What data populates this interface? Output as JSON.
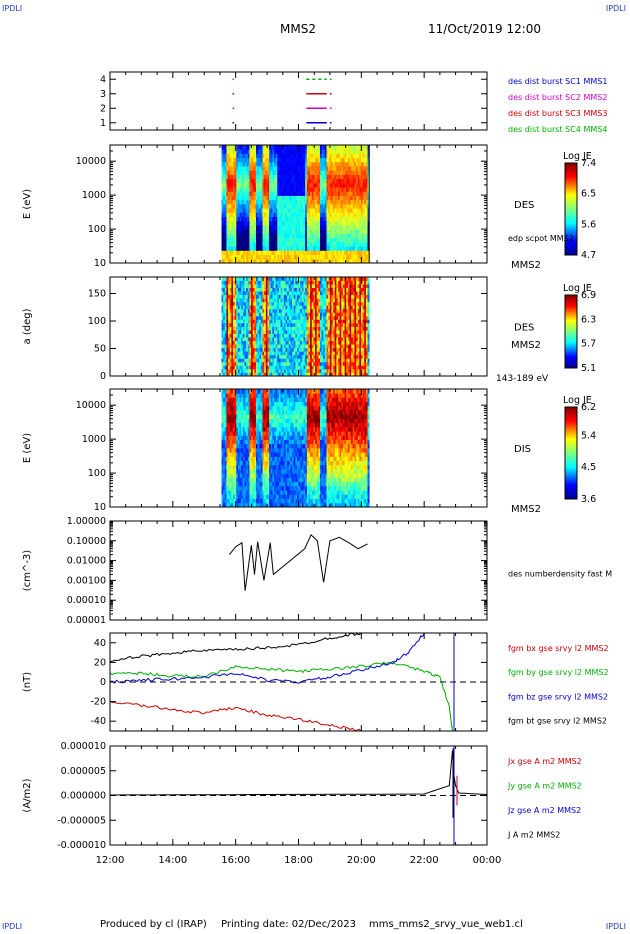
{
  "header": {
    "corner_label": "IPDLI",
    "spacecraft": "MMS2",
    "datetime": "11/Oct/2019 12:00"
  },
  "footer": {
    "produced_by": "Produced by cl (IRAP)",
    "printing_date": "Printing date: 02/Dec/2023",
    "script": "mms_mms2_srvy_vue_web1.cl"
  },
  "colors": {
    "mms1": "#0000cc",
    "mms2": "#cc00cc",
    "mms3": "#cc0000",
    "mms4": "#00b000",
    "bx": "#cc0000",
    "by": "#00b000",
    "bz": "#0000cc",
    "bt": "#000000"
  },
  "time_axis": {
    "tick_labels": [
      "12:00",
      "14:00",
      "16:00",
      "18:00",
      "20:00",
      "22:00",
      "00:00"
    ],
    "hours": [
      12,
      14,
      16,
      18,
      20,
      22,
      24
    ],
    "range_hours": [
      12,
      24
    ]
  },
  "chart_data": [
    {
      "type": "scatter",
      "id": "burst",
      "yticks": [
        "1",
        "2",
        "3",
        "4"
      ],
      "ylim": [
        0.5,
        4.5
      ],
      "legend": [
        "des dist burst SC1 MMS1",
        "des dist burst SC2 MMS2",
        "des dist burst SC3 MMS3",
        "des dist burst SC4 MMS4"
      ],
      "series": [
        {
          "sc": "mms1",
          "y": 1,
          "intervals": [
            [
              15.9,
              15.95
            ],
            [
              18.25,
              18.9
            ],
            [
              19.0,
              19.05
            ]
          ]
        },
        {
          "sc": "mms2",
          "y": 2,
          "intervals": [
            [
              15.9,
              15.95
            ],
            [
              18.25,
              18.9
            ],
            [
              19.0,
              19.05
            ]
          ]
        },
        {
          "sc": "mms3",
          "y": 3,
          "intervals": [
            [
              15.9,
              15.95
            ],
            [
              18.25,
              18.9
            ],
            [
              19.0,
              19.05
            ]
          ]
        },
        {
          "sc": "mms4",
          "y": 4,
          "intervals": [
            [
              15.9,
              15.95
            ],
            [
              18.25,
              18.9
            ],
            [
              19.0,
              19.05
            ]
          ]
        }
      ]
    },
    {
      "type": "heatmap",
      "id": "des_energy",
      "ylabel": "E (eV)",
      "yticks": [
        "10",
        "100",
        "1000",
        "10000"
      ],
      "ylog": true,
      "ylim": [
        10,
        30000
      ],
      "data_interval": [
        15.55,
        20.25
      ],
      "instrument": "DES",
      "overlay_label": "edp scpot MMS2",
      "spacecraft_label": "MMS2",
      "colorbar": {
        "title": "Log JE",
        "ticks": [
          "4.7",
          "5.6",
          "6.5",
          "7.4"
        ],
        "range": [
          4.7,
          7.4
        ]
      }
    },
    {
      "type": "heatmap",
      "id": "des_pitch",
      "ylabel": "a (deg)",
      "yticks": [
        "0",
        "50",
        "100",
        "150"
      ],
      "ylim": [
        0,
        180
      ],
      "data_interval": [
        15.55,
        20.25
      ],
      "instrument": "DES",
      "spacecraft_label": "MMS2",
      "energy_range": "143-189 eV",
      "colorbar": {
        "title": "Log JE",
        "ticks": [
          "5.1",
          "5.7",
          "6.3",
          "6.9"
        ],
        "range": [
          5.1,
          6.9
        ]
      }
    },
    {
      "type": "heatmap",
      "id": "dis_energy",
      "ylabel": "E (eV)",
      "yticks": [
        "10",
        "100",
        "1000",
        "10000"
      ],
      "ylog": true,
      "ylim": [
        10,
        30000
      ],
      "data_interval": [
        15.55,
        20.25
      ],
      "instrument": "DIS",
      "spacecraft_label": "MMS2",
      "colorbar": {
        "title": "Log JE",
        "ticks": [
          "3.6",
          "4.5",
          "5.4",
          "6.2"
        ],
        "range": [
          3.6,
          6.2
        ]
      }
    },
    {
      "type": "line",
      "id": "density",
      "ylabel": "(cm^-3)",
      "yticks": [
        "0.00001",
        "0.00010",
        "0.00100",
        "0.01000",
        "0.10000",
        "1.00000"
      ],
      "ylog": true,
      "ylim": [
        1e-05,
        1.0
      ],
      "legend": [
        "des numberdensity fast M"
      ],
      "series": [
        {
          "name": "des numberdensity fast M",
          "x": [
            15.8,
            16.0,
            16.2,
            16.3,
            16.5,
            16.6,
            16.7,
            16.9,
            17.1,
            17.2,
            18.2,
            18.4,
            18.6,
            18.8,
            19.0,
            19.3,
            19.6,
            19.9,
            20.2
          ],
          "y": [
            0.02,
            0.05,
            0.08,
            0.0003,
            0.06,
            0.002,
            0.09,
            0.001,
            0.08,
            0.002,
            0.04,
            0.2,
            0.1,
            0.0008,
            0.1,
            0.15,
            0.08,
            0.04,
            0.07
          ]
        }
      ]
    },
    {
      "type": "line",
      "id": "fgm",
      "ylabel": "(nT)",
      "yticks": [
        "-40",
        "-20",
        "0",
        "20",
        "40"
      ],
      "ylim": [
        -50,
        50
      ],
      "legend": [
        "fgm bx gse srvy l2 MMS2",
        "fgm by gse srvy l2 MMS2",
        "fgm bz gse srvy l2 MMS2",
        "fgm bt gse srvy l2 MMS2"
      ],
      "series": [
        {
          "name": "fgm bx gse srvy l2 MMS2",
          "color": "bx",
          "x": [
            12.0,
            13.0,
            14.0,
            15.0,
            16.0,
            17.0,
            18.0,
            19.0,
            20.0
          ],
          "y": [
            -20,
            -24,
            -28,
            -32,
            -26,
            -34,
            -38,
            -44,
            -50
          ]
        },
        {
          "name": "fgm by gse srvy l2 MMS2",
          "color": "by",
          "x": [
            12.0,
            13.0,
            14.0,
            15.0,
            16.0,
            17.0,
            18.0,
            19.0,
            20.0,
            21.0,
            22.0,
            22.5,
            22.8,
            22.9
          ],
          "y": [
            9,
            9,
            6,
            6,
            16,
            13,
            11,
            13,
            16,
            20,
            11,
            5,
            -25,
            -50
          ]
        },
        {
          "name": "fgm bz gse srvy l2 MMS2",
          "color": "bz",
          "x": [
            12.0,
            13.0,
            14.0,
            15.0,
            16.0,
            17.0,
            18.0,
            19.0,
            20.0,
            21.0,
            21.5,
            22.0
          ],
          "y": [
            0,
            2,
            3,
            5,
            9,
            2,
            0,
            5,
            12,
            20,
            30,
            50
          ]
        },
        {
          "name": "fgm bt gse srvy l2 MMS2",
          "color": "bt",
          "x": [
            12.0,
            13.0,
            14.0,
            15.0,
            16.0,
            17.0,
            18.0,
            19.0,
            20.0
          ],
          "y": [
            22,
            26,
            30,
            32,
            33,
            35,
            38,
            45,
            50
          ]
        }
      ],
      "vertical_line_hour": 22.95
    },
    {
      "type": "line",
      "id": "current",
      "ylabel": "(A/m2)",
      "yticks": [
        "-0.000010",
        "-0.000005",
        "0.000000",
        "0.000005",
        "0.000010"
      ],
      "ylim": [
        -1e-05,
        1e-05
      ],
      "legend": [
        "Jx gse A m2 MMS2",
        "Jy gse A m2 MMS2",
        "Jz gse A m2 MMS2",
        "J A m2 MMS2"
      ],
      "series": [
        {
          "name": "J A m2 MMS2",
          "color": "bt",
          "x": [
            12.0,
            22.0,
            22.8,
            22.9,
            22.95,
            23.0,
            23.1,
            24.0
          ],
          "y": [
            1e-07,
            3e-07,
            2e-06,
            9e-06,
            4e-06,
            2e-06,
            5e-07,
            2e-07
          ]
        }
      ],
      "vertical_line_hour": 22.95
    }
  ]
}
